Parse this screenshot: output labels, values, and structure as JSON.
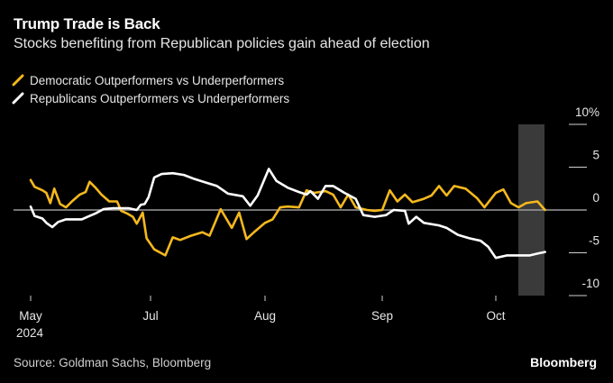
{
  "header": {
    "title": "Trump Trade is Back",
    "subtitle": "Stocks benefiting from Republican policies gain ahead of election"
  },
  "legend": [
    {
      "label": "Democratic Outperformers vs Underperformers",
      "color": "#f5b81d"
    },
    {
      "label": "Republicans Outperformers vs Underperformers",
      "color": "#ffffff"
    }
  ],
  "footer": {
    "source": "Source: Goldman Sachs, Bloomberg",
    "brand": "Bloomberg"
  },
  "chart_data": {
    "type": "line",
    "title": "Trump Trade is Back",
    "subtitle": "Stocks benefiting from Republican policies gain ahead of election",
    "xlabel": "",
    "ylabel": "",
    "x_range": [
      "2024-05-01",
      "2024-10-14"
    ],
    "x_ticks": [
      {
        "date": "2024-05-01",
        "label": "May",
        "sublabel": "2024"
      },
      {
        "date": "2024-07-01",
        "label": "Jul",
        "sublabel": ""
      },
      {
        "date": "2024-08-01",
        "label": "Aug",
        "sublabel": ""
      },
      {
        "date": "2024-09-01",
        "label": "Sep",
        "sublabel": ""
      },
      {
        "date": "2024-10-01",
        "label": "Oct",
        "sublabel": ""
      }
    ],
    "ylim": [
      -10,
      10
    ],
    "y_ticks": [
      10,
      5,
      0,
      -5,
      -10
    ],
    "y_tick_labels": [
      "10%",
      "5",
      "0",
      "-5",
      "-10"
    ],
    "y_axis_position": "right",
    "grid": false,
    "zero_line": true,
    "highlight_band": {
      "start": "2024-10-07",
      "end": "2024-10-14",
      "color": "#3a3a3a"
    },
    "legend_position": "top-left",
    "series": [
      {
        "name": "Democratic Outperformers vs Underperformers",
        "color": "#f5b81d",
        "points": [
          [
            "2024-05-01",
            3.5
          ],
          [
            "2024-05-03",
            2.7
          ],
          [
            "2024-05-07",
            2.3
          ],
          [
            "2024-05-09",
            2.0
          ],
          [
            "2024-05-11",
            0.8
          ],
          [
            "2024-05-13",
            2.5
          ],
          [
            "2024-05-16",
            0.7
          ],
          [
            "2024-05-19",
            0.3
          ],
          [
            "2024-05-22",
            1.0
          ],
          [
            "2024-05-26",
            1.8
          ],
          [
            "2024-05-29",
            2.1
          ],
          [
            "2024-05-31",
            3.3
          ],
          [
            "2024-06-03",
            2.6
          ],
          [
            "2024-06-06",
            1.8
          ],
          [
            "2024-06-10",
            1.0
          ],
          [
            "2024-06-14",
            1.0
          ],
          [
            "2024-06-16",
            -0.1
          ],
          [
            "2024-06-19",
            -0.4
          ],
          [
            "2024-06-22",
            -0.8
          ],
          [
            "2024-06-24",
            -1.6
          ],
          [
            "2024-06-27",
            -0.3
          ],
          [
            "2024-06-29",
            -3.3
          ],
          [
            "2024-07-02",
            -4.6
          ],
          [
            "2024-07-05",
            -5.3
          ],
          [
            "2024-07-07",
            -3.2
          ],
          [
            "2024-07-09",
            -3.5
          ],
          [
            "2024-07-12",
            -3.0
          ],
          [
            "2024-07-15",
            -2.6
          ],
          [
            "2024-07-17",
            -3.0
          ],
          [
            "2024-07-20",
            0.1
          ],
          [
            "2024-07-23",
            -2.1
          ],
          [
            "2024-07-25",
            -0.3
          ],
          [
            "2024-07-27",
            -3.4
          ],
          [
            "2024-07-29",
            -2.6
          ],
          [
            "2024-08-01",
            -1.5
          ],
          [
            "2024-08-03",
            -1.1
          ],
          [
            "2024-08-05",
            0.3
          ],
          [
            "2024-08-07",
            0.4
          ],
          [
            "2024-08-10",
            0.3
          ],
          [
            "2024-08-12",
            2.3
          ],
          [
            "2024-08-14",
            2.0
          ],
          [
            "2024-08-17",
            2.2
          ],
          [
            "2024-08-19",
            1.8
          ],
          [
            "2024-08-21",
            0.3
          ],
          [
            "2024-08-23",
            1.8
          ],
          [
            "2024-08-25",
            0.3
          ],
          [
            "2024-08-28",
            0.0
          ],
          [
            "2024-08-30",
            -0.1
          ],
          [
            "2024-09-01",
            0.0
          ],
          [
            "2024-09-03",
            2.3
          ],
          [
            "2024-09-05",
            1.0
          ],
          [
            "2024-09-07",
            1.8
          ],
          [
            "2024-09-09",
            0.9
          ],
          [
            "2024-09-12",
            1.3
          ],
          [
            "2024-09-14",
            1.7
          ],
          [
            "2024-09-16",
            2.8
          ],
          [
            "2024-09-18",
            1.7
          ],
          [
            "2024-09-20",
            2.8
          ],
          [
            "2024-09-23",
            2.5
          ],
          [
            "2024-09-26",
            1.4
          ],
          [
            "2024-09-28",
            0.3
          ],
          [
            "2024-10-01",
            2.0
          ],
          [
            "2024-10-03",
            2.4
          ],
          [
            "2024-10-05",
            0.8
          ],
          [
            "2024-10-07",
            0.3
          ],
          [
            "2024-10-09",
            0.8
          ],
          [
            "2024-10-12",
            1.0
          ],
          [
            "2024-10-14",
            0.0
          ]
        ]
      },
      {
        "name": "Republicans Outperformers vs Underperformers",
        "color": "#ffffff",
        "points": [
          [
            "2024-05-01",
            0.4
          ],
          [
            "2024-05-03",
            -0.7
          ],
          [
            "2024-05-07",
            -1.0
          ],
          [
            "2024-05-09",
            -1.5
          ],
          [
            "2024-05-12",
            -2.0
          ],
          [
            "2024-05-15",
            -1.4
          ],
          [
            "2024-05-19",
            -1.1
          ],
          [
            "2024-05-23",
            -1.1
          ],
          [
            "2024-05-27",
            -1.1
          ],
          [
            "2024-05-30",
            -0.8
          ],
          [
            "2024-06-03",
            -0.4
          ],
          [
            "2024-06-07",
            0.1
          ],
          [
            "2024-06-12",
            0.2
          ],
          [
            "2024-06-16",
            0.2
          ],
          [
            "2024-06-20",
            0.2
          ],
          [
            "2024-06-24",
            0.0
          ],
          [
            "2024-06-26",
            0.6
          ],
          [
            "2024-06-28",
            0.7
          ],
          [
            "2024-06-30",
            1.5
          ],
          [
            "2024-07-02",
            3.8
          ],
          [
            "2024-07-04",
            4.2
          ],
          [
            "2024-07-07",
            4.3
          ],
          [
            "2024-07-10",
            4.1
          ],
          [
            "2024-07-13",
            3.6
          ],
          [
            "2024-07-16",
            3.2
          ],
          [
            "2024-07-19",
            2.8
          ],
          [
            "2024-07-22",
            1.9
          ],
          [
            "2024-07-26",
            1.6
          ],
          [
            "2024-07-28",
            0.5
          ],
          [
            "2024-07-30",
            1.7
          ],
          [
            "2024-08-02",
            4.8
          ],
          [
            "2024-08-04",
            3.4
          ],
          [
            "2024-08-07",
            2.6
          ],
          [
            "2024-08-10",
            2.1
          ],
          [
            "2024-08-12",
            1.8
          ],
          [
            "2024-08-13",
            2.2
          ],
          [
            "2024-08-15",
            1.3
          ],
          [
            "2024-08-17",
            2.8
          ],
          [
            "2024-08-19",
            2.8
          ],
          [
            "2024-08-22",
            2.0
          ],
          [
            "2024-08-25",
            1.3
          ],
          [
            "2024-08-27",
            -0.6
          ],
          [
            "2024-08-30",
            -0.8
          ],
          [
            "2024-09-02",
            -0.6
          ],
          [
            "2024-09-04",
            0.0
          ],
          [
            "2024-09-07",
            -0.1
          ],
          [
            "2024-09-08",
            -1.6
          ],
          [
            "2024-09-10",
            -0.8
          ],
          [
            "2024-09-12",
            -1.5
          ],
          [
            "2024-09-16",
            -1.8
          ],
          [
            "2024-09-18",
            -2.1
          ],
          [
            "2024-09-21",
            -2.9
          ],
          [
            "2024-09-24",
            -3.3
          ],
          [
            "2024-09-27",
            -3.6
          ],
          [
            "2024-09-29",
            -4.3
          ],
          [
            "2024-10-01",
            -5.6
          ],
          [
            "2024-10-04",
            -5.3
          ],
          [
            "2024-10-07",
            -5.3
          ],
          [
            "2024-10-10",
            -5.3
          ],
          [
            "2024-10-12",
            -5.1
          ],
          [
            "2024-10-14",
            -4.9
          ]
        ]
      }
    ]
  }
}
